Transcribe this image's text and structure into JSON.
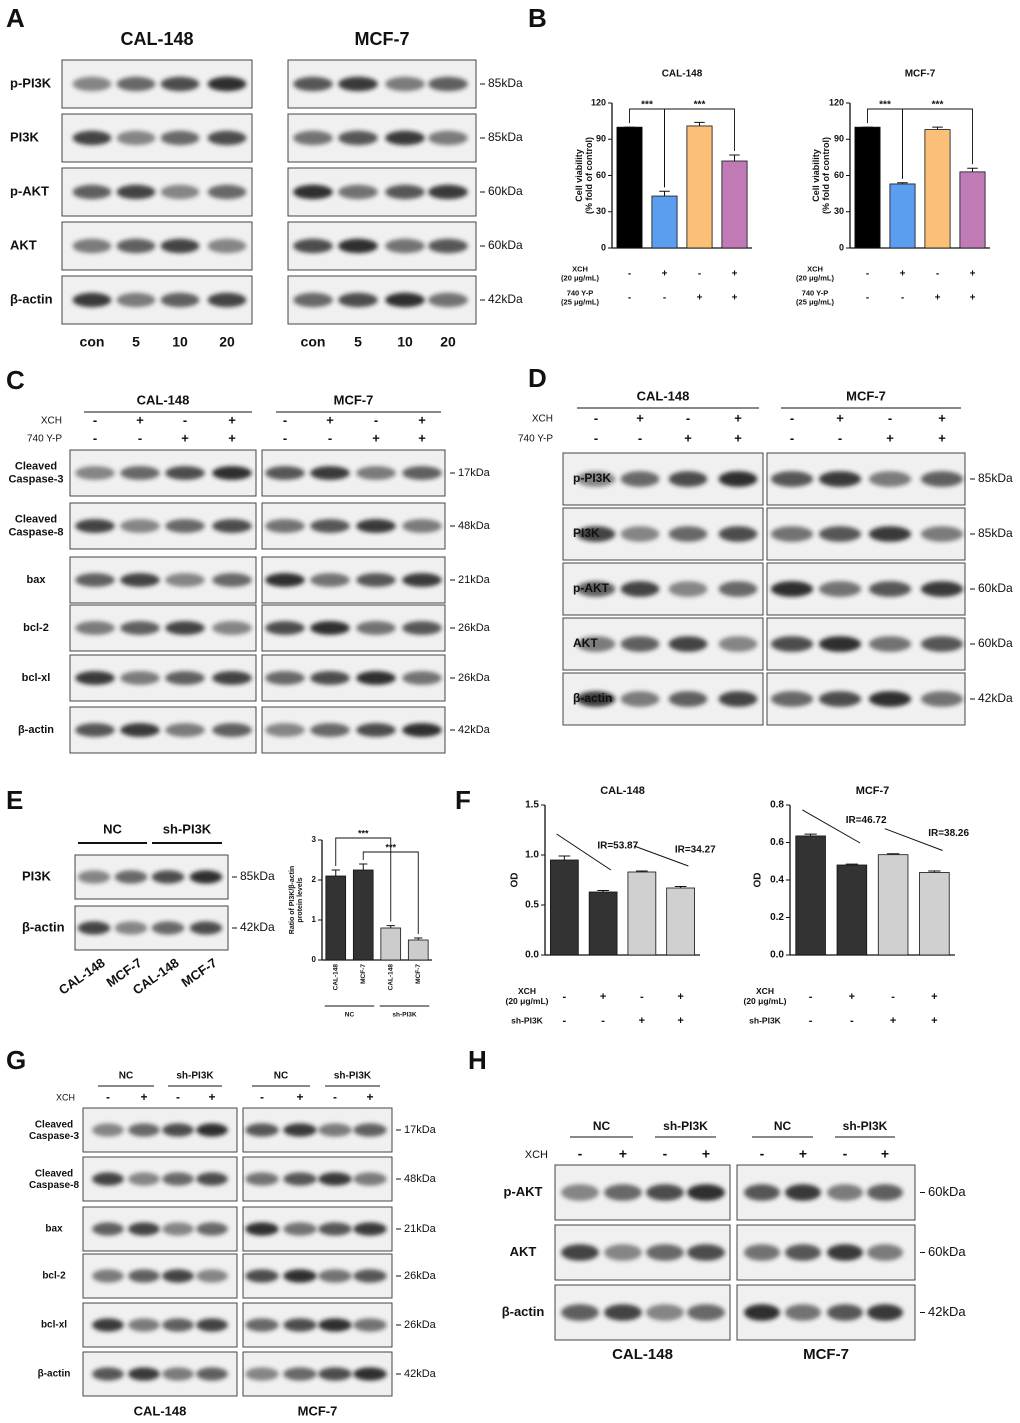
{
  "panel_a": {
    "letter": "A",
    "groups": [
      {
        "name": "CAL-148",
        "lanes": [
          "con",
          "5",
          "10",
          "20"
        ]
      },
      {
        "name": "MCF-7",
        "lanes": [
          "con",
          "5",
          "10",
          "20"
        ]
      }
    ],
    "rows": [
      {
        "label": "p-PI3K",
        "size": "85kDa"
      },
      {
        "label": "PI3K",
        "size": "85kDa"
      },
      {
        "label": "p-AKT",
        "size": "60kDa"
      },
      {
        "label": "AKT",
        "size": "60kDa"
      },
      {
        "label": "β-actin",
        "size": "42kDa"
      }
    ]
  },
  "panel_b": {
    "letter": "B",
    "charts": [
      {
        "type": "bar",
        "title": "CAL-148",
        "y_label": "Cell viability (% fold of control)",
        "values": [
          100,
          43,
          101,
          72
        ],
        "errors": [
          0,
          4,
          3,
          5
        ],
        "colors": [
          "#000000",
          "#5b9ef0",
          "#fbbf77",
          "#c07bb6"
        ],
        "ylim": [
          0,
          120
        ],
        "yticks": [
          0,
          30,
          60,
          90,
          120
        ],
        "significance": [
          {
            "bars": [
              0,
              1
            ],
            "label": "***"
          },
          {
            "bars": [
              1,
              3
            ],
            "label": "***"
          }
        ],
        "conditions": [
          {
            "label": "XCH (20 μg/mL)",
            "signs": [
              "-",
              "+",
              "-",
              "+"
            ]
          },
          {
            "label": "740 Y-P (25 μg/mL)",
            "signs": [
              "-",
              "-",
              "+",
              "+"
            ]
          }
        ]
      },
      {
        "type": "bar",
        "title": "MCF-7",
        "y_label": "Cell viability (% fold of control)",
        "values": [
          100,
          53,
          98,
          63
        ],
        "errors": [
          0,
          1,
          2,
          3
        ],
        "colors": [
          "#000000",
          "#5b9ef0",
          "#fbbf77",
          "#c07bb6"
        ],
        "ylim": [
          0,
          120
        ],
        "yticks": [
          0,
          30,
          60,
          90,
          120
        ],
        "significance": [
          {
            "bars": [
              0,
              1
            ],
            "label": "***"
          },
          {
            "bars": [
              1,
              3
            ],
            "label": "***"
          }
        ],
        "conditions": [
          {
            "label": "XCH (20 μg/mL)",
            "signs": [
              "-",
              "+",
              "-",
              "+"
            ]
          },
          {
            "label": "740 Y-P (25 μg/mL)",
            "signs": [
              "-",
              "-",
              "+",
              "+"
            ]
          }
        ]
      }
    ]
  },
  "panel_c": {
    "letter": "C",
    "groups": [
      "CAL-148",
      "MCF-7"
    ],
    "conditions": [
      {
        "label": "XCH",
        "signs": [
          "-",
          "+",
          "-",
          "+",
          "-",
          "+",
          "-",
          "+"
        ]
      },
      {
        "label": "740 Y-P",
        "signs": [
          "-",
          "-",
          "+",
          "+",
          "-",
          "-",
          "+",
          "+"
        ]
      }
    ],
    "rows": [
      {
        "label": "Cleaved Caspase-3",
        "size": "17kDa"
      },
      {
        "label": "Cleaved Caspase-8",
        "size": "48kDa"
      },
      {
        "label": "bax",
        "size": "21kDa"
      },
      {
        "label": "bcl-2",
        "size": "26kDa"
      },
      {
        "label": "bcl-xl",
        "size": "26kDa"
      },
      {
        "label": "β-actin",
        "size": "42kDa"
      }
    ]
  },
  "panel_d": {
    "letter": "D",
    "groups": [
      "CAL-148",
      "MCF-7"
    ],
    "conditions": [
      {
        "label": "XCH",
        "signs": [
          "-",
          "+",
          "-",
          "+",
          "-",
          "+",
          "-",
          "+"
        ]
      },
      {
        "label": "740 Y-P",
        "signs": [
          "-",
          "-",
          "+",
          "+",
          "-",
          "-",
          "+",
          "+"
        ]
      }
    ],
    "rows": [
      {
        "label": "p-PI3K",
        "size": "85kDa"
      },
      {
        "label": "PI3K",
        "size": "85kDa"
      },
      {
        "label": "p-AKT",
        "size": "60kDa"
      },
      {
        "label": "AKT",
        "size": "60kDa"
      },
      {
        "label": "β-actin",
        "size": "42kDa"
      }
    ]
  },
  "panel_e": {
    "letter": "E",
    "groups": [
      "NC",
      "sh-PI3K"
    ],
    "rows": [
      {
        "label": "PI3K",
        "size": "85kDa"
      },
      {
        "label": "β-actin",
        "size": "42kDa"
      }
    ],
    "lanes": [
      "CAL-148",
      "MCF-7",
      "CAL-148",
      "MCF-7"
    ],
    "chart": {
      "type": "bar",
      "y_label": "Ratio of PI3K/β-actin protein levels",
      "categories": [
        "CAL-148",
        "MCF-7",
        "CAL-148",
        "MCF-7"
      ],
      "groups": [
        "NC",
        "sh-PI3K"
      ],
      "values": [
        2.1,
        2.25,
        0.8,
        0.5
      ],
      "errors": [
        0.15,
        0.15,
        0.06,
        0.05
      ],
      "colors": [
        "#333333",
        "#333333",
        "#cccccc",
        "#cccccc"
      ],
      "ylim": [
        0,
        3
      ],
      "yticks": [
        0,
        1,
        2,
        3
      ],
      "significance": [
        {
          "bars": [
            0,
            2
          ],
          "label": "***"
        },
        {
          "bars": [
            1,
            3
          ],
          "label": "***"
        }
      ]
    }
  },
  "panel_f": {
    "letter": "F",
    "charts": [
      {
        "type": "bar",
        "title": "CAL-148",
        "y_label": "OD",
        "values": [
          0.95,
          0.63,
          0.83,
          0.67
        ],
        "errors": [
          0.04,
          0.015,
          0.01,
          0.015
        ],
        "colors": [
          "#333333",
          "#333333",
          "#d0d0d0",
          "#d0d0d0"
        ],
        "ylim": [
          0,
          1.5
        ],
        "yticks": [
          {
            "value": 0,
            "label": "0.0"
          },
          {
            "value": 0.5,
            "label": "0.5"
          },
          {
            "value": 1,
            "label": "1.0"
          },
          {
            "value": 1.5,
            "label": "1.5"
          }
        ],
        "annotations": [
          "IR=53.87",
          "IR=34.27"
        ],
        "conditions": [
          {
            "label": "XCH (20 μg/mL)",
            "signs": [
              "-",
              "+",
              "-",
              "+"
            ]
          },
          {
            "label": "sh-PI3K",
            "signs": [
              "-",
              "-",
              "+",
              "+"
            ]
          }
        ]
      },
      {
        "type": "bar",
        "title": "MCF-7",
        "y_label": "OD",
        "values": [
          0.635,
          0.48,
          0.535,
          0.44
        ],
        "errors": [
          0.01,
          0.005,
          0.005,
          0.008
        ],
        "colors": [
          "#333333",
          "#333333",
          "#d0d0d0",
          "#d0d0d0"
        ],
        "ylim": [
          0,
          0.8
        ],
        "yticks": [
          {
            "value": 0,
            "label": "0.0"
          },
          {
            "value": 0.2,
            "label": "0.2"
          },
          {
            "value": 0.4,
            "label": "0.4"
          },
          {
            "value": 0.6,
            "label": "0.6"
          },
          {
            "value": 0.8,
            "label": "0.8"
          }
        ],
        "annotations": [
          "IR=46.72",
          "IR=38.26"
        ],
        "conditions": [
          {
            "label": "XCH (20 μg/mL)",
            "signs": [
              "-",
              "+",
              "-",
              "+"
            ]
          },
          {
            "label": "sh-PI3K",
            "signs": [
              "-",
              "-",
              "+",
              "+"
            ]
          }
        ]
      }
    ]
  },
  "panel_g": {
    "letter": "G",
    "groups": [
      {
        "name": "CAL-148",
        "subgroups": [
          "NC",
          "sh-PI3K"
        ]
      },
      {
        "name": "MCF-7",
        "subgroups": [
          "NC",
          "sh-PI3K"
        ]
      }
    ],
    "conditions": [
      {
        "label": "XCH",
        "signs": [
          "-",
          "+",
          "-",
          "+",
          "-",
          "+",
          "-",
          "+"
        ]
      }
    ],
    "rows": [
      {
        "label": "Cleaved Caspase-3",
        "size": "17kDa"
      },
      {
        "label": "Cleaved Caspase-8",
        "size": "48kDa"
      },
      {
        "label": "bax",
        "size": "21kDa"
      },
      {
        "label": "bcl-2",
        "size": "26kDa"
      },
      {
        "label": "bcl-xl",
        "size": "26kDa"
      },
      {
        "label": "β-actin",
        "size": "42kDa"
      }
    ]
  },
  "panel_h": {
    "letter": "H",
    "groups": [
      {
        "name": "CAL-148",
        "subgroups": [
          "NC",
          "sh-PI3K"
        ]
      },
      {
        "name": "MCF-7",
        "subgroups": [
          "NC",
          "sh-PI3K"
        ]
      }
    ],
    "conditions": [
      {
        "label": "XCH",
        "signs": [
          "-",
          "+",
          "-",
          "+",
          "-",
          "+",
          "-",
          "+"
        ]
      }
    ],
    "rows": [
      {
        "label": "p-AKT",
        "size": "60kDa"
      },
      {
        "label": "AKT",
        "size": "60kDa"
      },
      {
        "label": "β-actin",
        "size": "42kDa"
      }
    ]
  }
}
